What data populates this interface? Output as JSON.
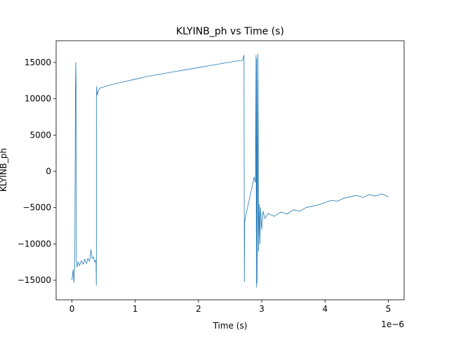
{
  "chart_data": {
    "type": "line",
    "title": "KLYINB_ph vs Time (s)",
    "xlabel": "Time (s)",
    "ylabel": "KLYINB_ph",
    "x_offset_label": "1e−6",
    "xlim": [
      -2.5e-07,
      5.25e-06
    ],
    "ylim": [
      -17700,
      18000
    ],
    "x_ticks": [
      0,
      1e-06,
      2e-06,
      3e-06,
      4e-06,
      5e-06
    ],
    "x_tick_labels": [
      "0",
      "1",
      "2",
      "3",
      "4",
      "5"
    ],
    "y_ticks": [
      -15000,
      -10000,
      -5000,
      0,
      5000,
      10000,
      15000
    ],
    "y_tick_labels": [
      "−15000",
      "−10000",
      "−5000",
      "0",
      "5000",
      "10000",
      "15000"
    ],
    "grid": false,
    "line_color": "#1f77b4",
    "series": [
      {
        "points": [
          [
            0.0,
            -15000
          ],
          [
            1e-08,
            -14200
          ],
          [
            2e-08,
            -13500
          ],
          [
            3e-08,
            -15300
          ],
          [
            4.5e-08,
            -13000
          ],
          [
            5.5e-08,
            10500
          ],
          [
            6e-08,
            15000
          ],
          [
            6.5e-08,
            12000
          ],
          [
            7e-08,
            -12000
          ],
          [
            8e-08,
            -13200
          ],
          [
            1e-07,
            -12500
          ],
          [
            1.2e-07,
            -13000
          ],
          [
            1.5e-07,
            -12300
          ],
          [
            1.8e-07,
            -12800
          ],
          [
            2e-07,
            -12100
          ],
          [
            2.3e-07,
            -12700
          ],
          [
            2.5e-07,
            -12000
          ],
          [
            2.8e-07,
            -12400
          ],
          [
            3e-07,
            -10800
          ],
          [
            3.2e-07,
            -12000
          ],
          [
            3.4e-07,
            -11800
          ],
          [
            3.6e-07,
            -12500
          ],
          [
            3.8e-07,
            -12200
          ],
          [
            3.85e-07,
            -15700
          ],
          [
            3.9e-07,
            11700
          ],
          [
            4e-07,
            10500
          ],
          [
            4.2e-07,
            11200
          ],
          [
            4.5e-07,
            11500
          ],
          [
            6e-07,
            11900
          ],
          [
            8e-07,
            12300
          ],
          [
            1e-06,
            12700
          ],
          [
            1.2e-06,
            13100
          ],
          [
            1.4e-06,
            13400
          ],
          [
            1.6e-06,
            13700
          ],
          [
            1.8e-06,
            14000
          ],
          [
            2e-06,
            14300
          ],
          [
            2.2e-06,
            14600
          ],
          [
            2.4e-06,
            14900
          ],
          [
            2.6e-06,
            15200
          ],
          [
            2.7e-06,
            15300
          ],
          [
            2.72e-06,
            16000
          ],
          [
            2.725e-06,
            -15200
          ],
          [
            2.73e-06,
            -7000
          ],
          [
            2.75e-06,
            -6000
          ],
          [
            2.8e-06,
            -4000
          ],
          [
            2.85e-06,
            -2000
          ],
          [
            2.88e-06,
            -800
          ],
          [
            2.9e-06,
            -1500
          ],
          [
            2.91e-06,
            16000
          ],
          [
            2.915e-06,
            -16000
          ],
          [
            2.92e-06,
            15500
          ],
          [
            2.93e-06,
            -15400
          ],
          [
            2.94e-06,
            16200
          ],
          [
            2.95e-06,
            -11000
          ],
          [
            2.96e-06,
            -4500
          ],
          [
            2.97e-06,
            -10000
          ],
          [
            2.98e-06,
            -5000
          ],
          [
            3e-06,
            -8000
          ],
          [
            3.02e-06,
            -5500
          ],
          [
            3.05e-06,
            -6500
          ],
          [
            3.1e-06,
            -5800
          ],
          [
            3.2e-06,
            -6200
          ],
          [
            3.3e-06,
            -5600
          ],
          [
            3.4e-06,
            -5900
          ],
          [
            3.5e-06,
            -5300
          ],
          [
            3.6e-06,
            -5500
          ],
          [
            3.7e-06,
            -5000
          ],
          [
            3.8e-06,
            -4800
          ],
          [
            3.9e-06,
            -4600
          ],
          [
            4e-06,
            -4300
          ],
          [
            4.1e-06,
            -4000
          ],
          [
            4.2e-06,
            -4100
          ],
          [
            4.3e-06,
            -3700
          ],
          [
            4.4e-06,
            -3500
          ],
          [
            4.5e-06,
            -3300
          ],
          [
            4.6e-06,
            -3600
          ],
          [
            4.7e-06,
            -3200
          ],
          [
            4.8e-06,
            -3400
          ],
          [
            4.9e-06,
            -3100
          ],
          [
            5e-06,
            -3500
          ]
        ]
      }
    ]
  }
}
